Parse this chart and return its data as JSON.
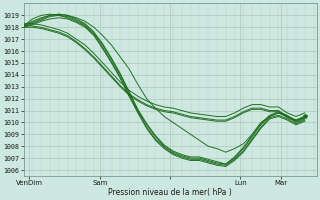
{
  "background_color": "#cde8e0",
  "grid_color_major": "#b8c8c0",
  "grid_color_minor": "#c8d8d0",
  "line_color": "#1a6b1a",
  "ylabel_ticks": [
    1006,
    1007,
    1008,
    1009,
    1010,
    1011,
    1012,
    1013,
    1014,
    1015,
    1016,
    1017,
    1018,
    1019
  ],
  "ylim": [
    1005.5,
    1020.0
  ],
  "xlim": [
    0,
    100
  ],
  "xtick_positions": [
    2,
    26,
    50,
    74,
    88
  ],
  "xtick_labels": [
    "VenDim",
    "Sam",
    "",
    "Lun",
    "Mar"
  ],
  "xlabel": "Pression niveau de la mer( hPa )",
  "lines": [
    {
      "x": [
        0,
        3,
        6,
        9,
        12,
        15,
        18,
        21,
        24,
        27,
        30,
        33,
        36,
        39,
        42,
        45,
        48,
        51,
        54,
        57,
        60,
        63,
        66,
        69,
        72,
        75,
        78,
        81,
        84,
        87,
        90,
        93,
        96
      ],
      "y": [
        1018.2,
        1018.5,
        1018.8,
        1019.0,
        1019.1,
        1019.0,
        1018.8,
        1018.5,
        1018.0,
        1017.3,
        1016.5,
        1015.5,
        1014.5,
        1013.2,
        1012.0,
        1011.2,
        1010.5,
        1010.0,
        1009.5,
        1009.0,
        1008.5,
        1008.0,
        1007.8,
        1007.5,
        1007.8,
        1008.2,
        1009.0,
        1010.0,
        1010.5,
        1010.8,
        1010.5,
        1010.2,
        1010.5
      ]
    },
    {
      "x": [
        0,
        3,
        6,
        9,
        12,
        15,
        18,
        21,
        24,
        27,
        30,
        33,
        36,
        39,
        42,
        45,
        48,
        51,
        54,
        57,
        60,
        63,
        66,
        69,
        72,
        75,
        78,
        81,
        84,
        87,
        90,
        93,
        96
      ],
      "y": [
        1018.0,
        1018.3,
        1018.6,
        1018.9,
        1019.0,
        1018.9,
        1018.6,
        1018.2,
        1017.5,
        1016.5,
        1015.3,
        1014.0,
        1012.5,
        1011.0,
        1009.8,
        1008.8,
        1008.0,
        1007.5,
        1007.2,
        1007.0,
        1007.0,
        1006.8,
        1006.6,
        1006.5,
        1007.0,
        1007.8,
        1008.8,
        1009.8,
        1010.5,
        1010.8,
        1010.5,
        1010.0,
        1010.3
      ]
    },
    {
      "x": [
        0,
        3,
        6,
        9,
        12,
        15,
        18,
        21,
        24,
        27,
        30,
        33,
        36,
        39,
        42,
        45,
        48,
        51,
        54,
        57,
        60,
        63,
        66,
        69,
        72,
        75,
        78,
        81,
        84,
        87,
        90,
        93,
        96
      ],
      "y": [
        1018.1,
        1018.4,
        1018.7,
        1019.0,
        1019.1,
        1019.0,
        1018.7,
        1018.3,
        1017.6,
        1016.6,
        1015.4,
        1014.1,
        1012.6,
        1011.1,
        1009.9,
        1008.9,
        1008.1,
        1007.6,
        1007.3,
        1007.1,
        1007.1,
        1006.9,
        1006.7,
        1006.5,
        1007.1,
        1007.9,
        1008.9,
        1009.9,
        1010.6,
        1010.9,
        1010.6,
        1010.1,
        1010.4
      ]
    },
    {
      "x": [
        0,
        3,
        6,
        9,
        12,
        15,
        18,
        21,
        24,
        27,
        30,
        33,
        36,
        39,
        42,
        45,
        48,
        51,
        54,
        57,
        60,
        63,
        66,
        69,
        72,
        75,
        78,
        81,
        84,
        87,
        90,
        93,
        96
      ],
      "y": [
        1018.0,
        1018.2,
        1018.5,
        1018.7,
        1018.8,
        1018.7,
        1018.4,
        1018.0,
        1017.3,
        1016.2,
        1015.0,
        1013.7,
        1012.2,
        1010.8,
        1009.5,
        1008.5,
        1007.8,
        1007.3,
        1007.0,
        1006.8,
        1006.8,
        1006.6,
        1006.4,
        1006.3,
        1006.8,
        1007.5,
        1008.5,
        1009.5,
        1010.3,
        1010.5,
        1010.2,
        1009.8,
        1010.1
      ]
    },
    {
      "x": [
        0,
        3,
        6,
        9,
        12,
        15,
        18,
        21,
        24,
        27,
        30,
        33,
        36,
        39,
        42,
        45,
        48,
        51,
        54,
        57,
        60,
        63,
        66,
        69,
        72,
        75,
        78,
        81,
        84,
        87,
        90,
        93,
        96
      ],
      "y": [
        1018.3,
        1018.3,
        1018.2,
        1018.0,
        1017.8,
        1017.5,
        1017.0,
        1016.5,
        1015.8,
        1015.0,
        1014.2,
        1013.4,
        1012.7,
        1012.2,
        1011.8,
        1011.5,
        1011.3,
        1011.2,
        1011.0,
        1010.8,
        1010.7,
        1010.6,
        1010.5,
        1010.5,
        1010.8,
        1011.2,
        1011.5,
        1011.5,
        1011.3,
        1011.3,
        1010.8,
        1010.5,
        1010.8
      ]
    },
    {
      "x": [
        0,
        3,
        6,
        9,
        12,
        15,
        18,
        21,
        24,
        27,
        30,
        33,
        36,
        39,
        42,
        45,
        48,
        51,
        54,
        57,
        60,
        63,
        66,
        69,
        72,
        75,
        78,
        81,
        84,
        87,
        90,
        93,
        96
      ],
      "y": [
        1018.2,
        1018.1,
        1018.0,
        1017.8,
        1017.6,
        1017.3,
        1016.8,
        1016.2,
        1015.5,
        1014.7,
        1013.9,
        1013.1,
        1012.4,
        1011.9,
        1011.5,
        1011.2,
        1011.0,
        1010.9,
        1010.7,
        1010.5,
        1010.4,
        1010.3,
        1010.2,
        1010.2,
        1010.5,
        1010.9,
        1011.2,
        1011.2,
        1011.0,
        1011.0,
        1010.5,
        1010.2,
        1010.5
      ]
    },
    {
      "x": [
        0,
        3,
        6,
        9,
        12,
        15,
        18,
        21,
        24,
        27,
        30,
        33,
        36,
        39,
        42,
        45,
        48,
        51,
        54,
        57,
        60,
        63,
        66,
        69,
        72,
        75,
        78,
        81,
        84,
        87,
        90,
        93,
        96
      ],
      "y": [
        1018.0,
        1018.0,
        1017.9,
        1017.7,
        1017.5,
        1017.2,
        1016.7,
        1016.1,
        1015.4,
        1014.6,
        1013.8,
        1013.0,
        1012.3,
        1011.8,
        1011.4,
        1011.1,
        1010.9,
        1010.8,
        1010.6,
        1010.4,
        1010.3,
        1010.2,
        1010.1,
        1010.1,
        1010.4,
        1010.8,
        1011.1,
        1011.1,
        1010.9,
        1010.9,
        1010.4,
        1010.1,
        1010.4
      ]
    },
    {
      "x": [
        0,
        3,
        6,
        9,
        12,
        15,
        18,
        21,
        24,
        27,
        30,
        33,
        36,
        39,
        42,
        45,
        48,
        51,
        54,
        57,
        60,
        63,
        66,
        69,
        72,
        75,
        78,
        81,
        84,
        87,
        90,
        93,
        96
      ],
      "y": [
        1018.1,
        1018.7,
        1019.0,
        1019.1,
        1019.0,
        1018.8,
        1018.5,
        1018.1,
        1017.4,
        1016.3,
        1015.1,
        1013.8,
        1012.3,
        1010.9,
        1009.6,
        1008.6,
        1007.9,
        1007.4,
        1007.1,
        1006.9,
        1006.9,
        1006.7,
        1006.5,
        1006.4,
        1006.9,
        1007.6,
        1008.6,
        1009.6,
        1010.4,
        1010.6,
        1010.3,
        1009.9,
        1010.2
      ]
    }
  ]
}
